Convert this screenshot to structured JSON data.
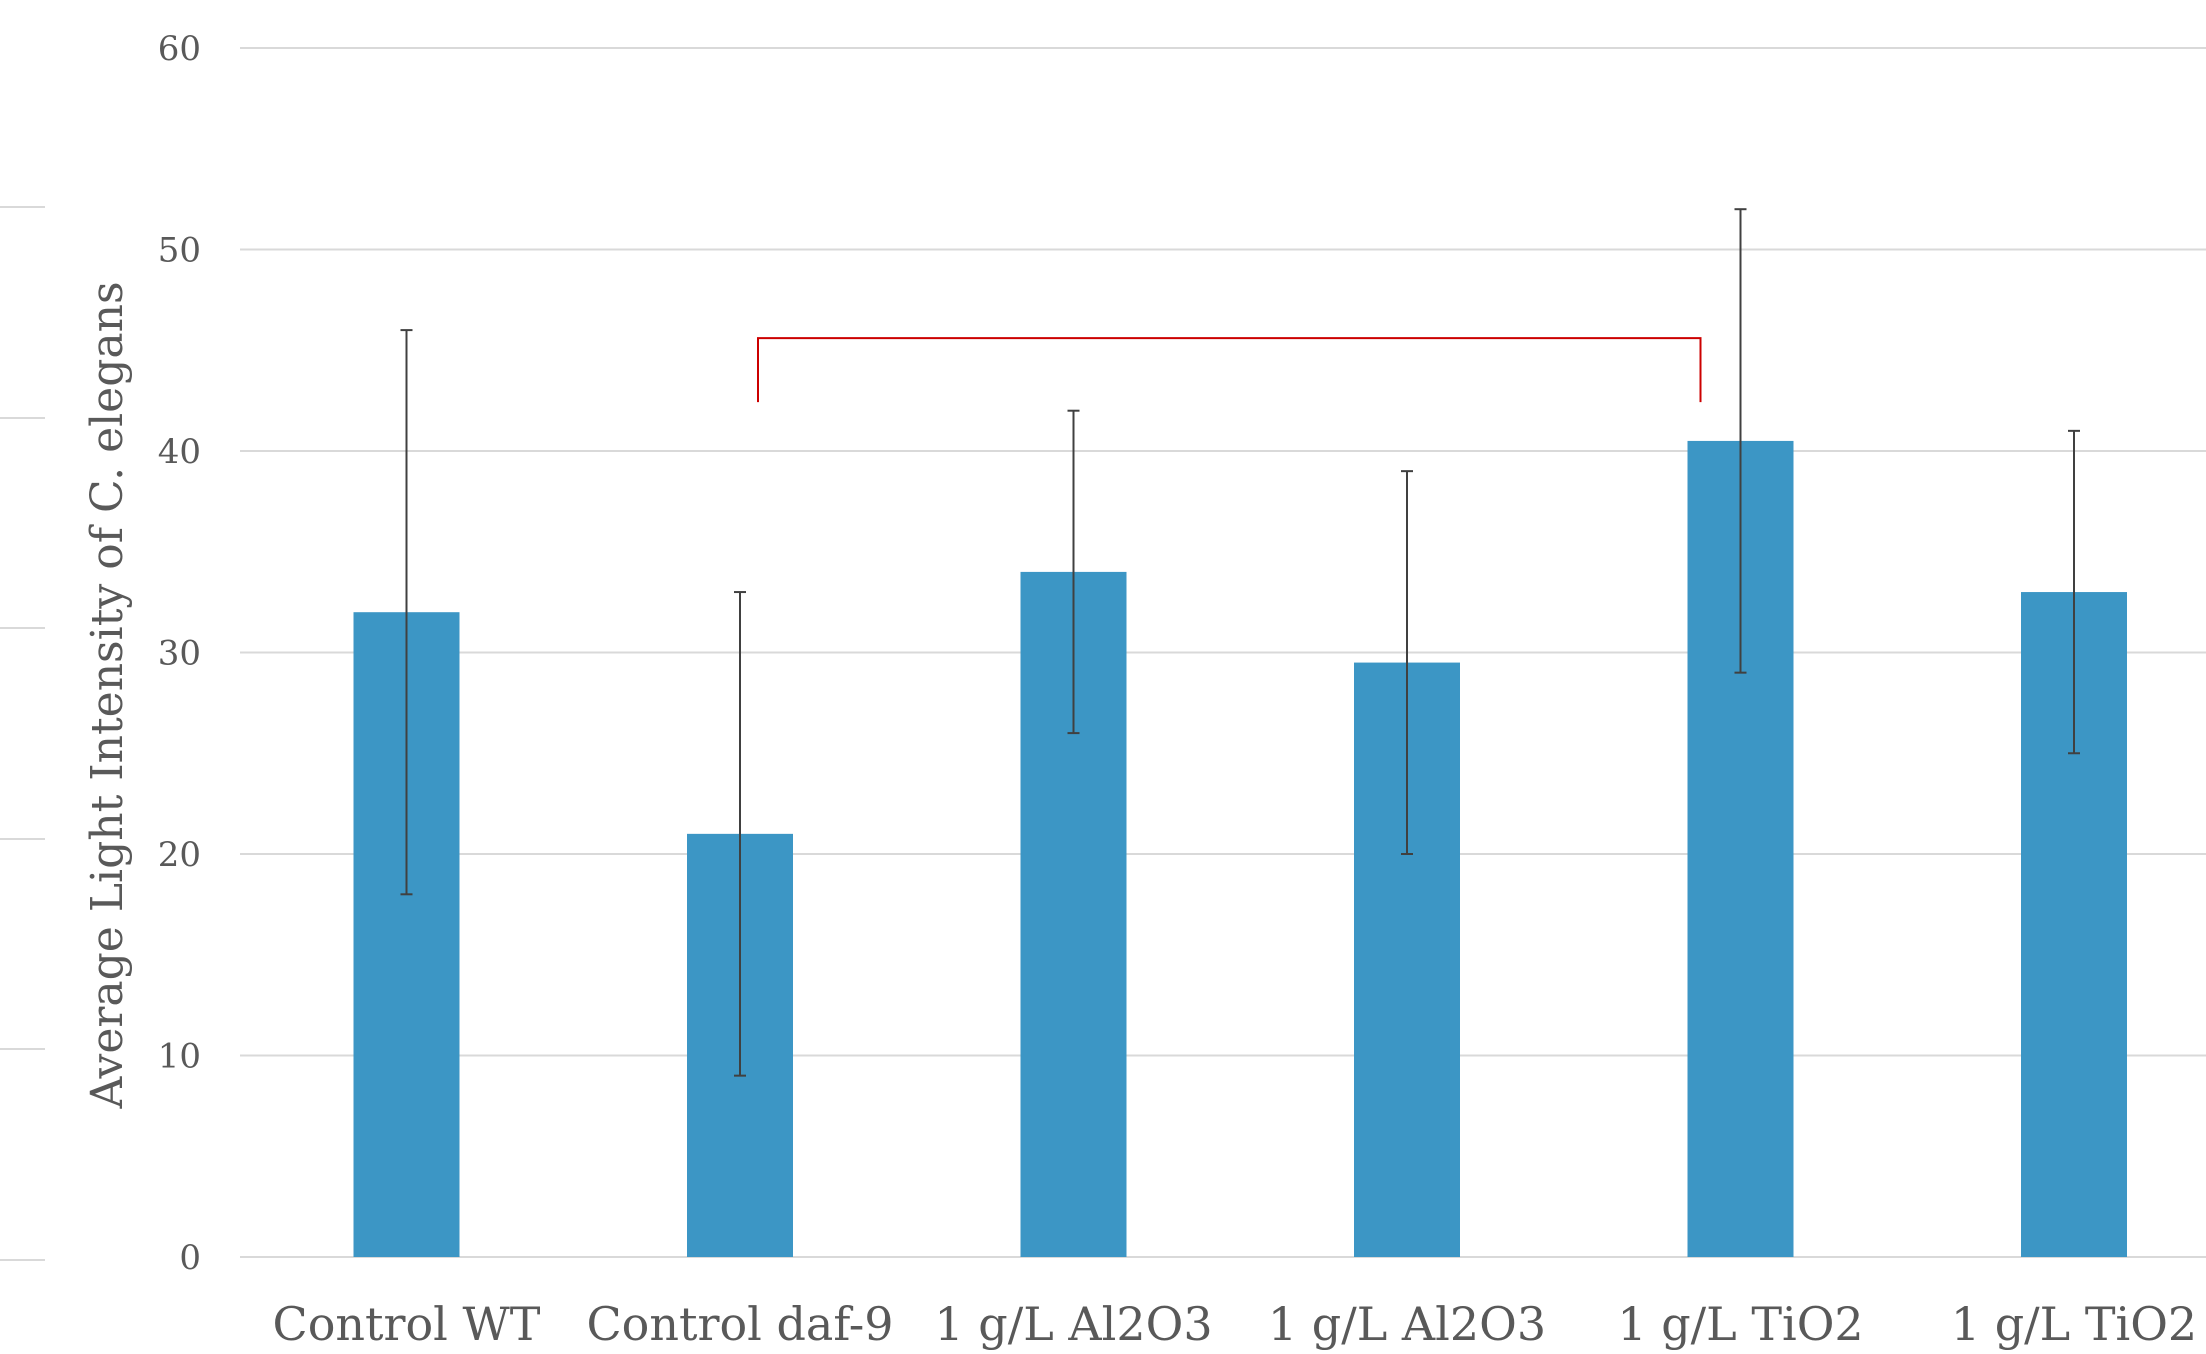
{
  "chart_data": {
    "type": "bar",
    "title": "",
    "xlabel": "",
    "ylabel": "Average Light Intensity of C. elegans",
    "categories": [
      "Control WT",
      "Control daf-9",
      "1 g/L Al2O3",
      "1 g/L Al2O3",
      "1 g/L TiO2",
      "1 g/L TiO2"
    ],
    "values": [
      32,
      21,
      34,
      29.5,
      40.5,
      33
    ],
    "error_low": [
      18,
      9,
      26,
      20,
      29,
      25
    ],
    "error_high": [
      46,
      33,
      42,
      39,
      52,
      41
    ],
    "ylim": [
      0,
      60
    ],
    "yticks": [
      0,
      10,
      20,
      30,
      40,
      50,
      60
    ],
    "grid": true,
    "legend": "none",
    "bar_color": "#3C96C5",
    "error_bar_color": "#404040",
    "bracket": {
      "from_category": 1,
      "to_category": 4,
      "y_value": 46,
      "color": "#CC0000"
    }
  }
}
